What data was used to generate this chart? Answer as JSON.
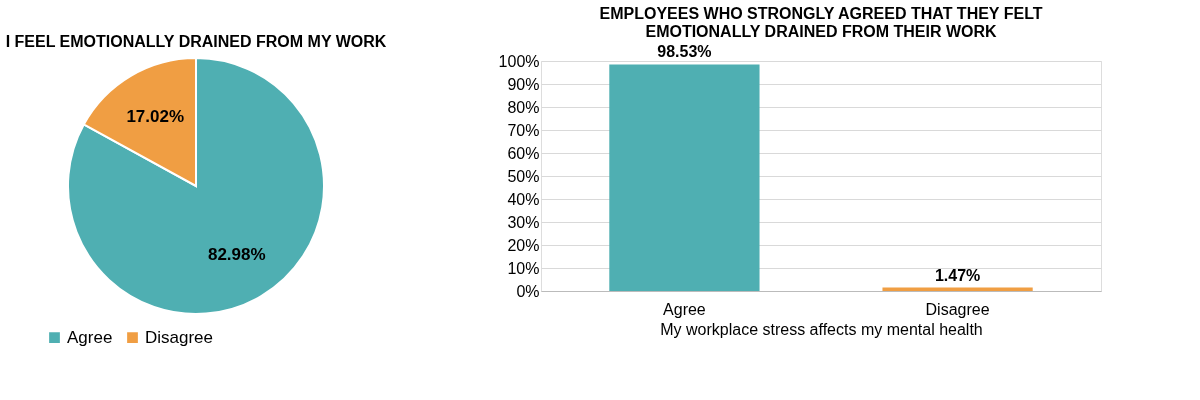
{
  "chart_data": [
    {
      "type": "pie",
      "title": "I FEEL EMOTIONALLY DRAINED FROM MY WORK",
      "categories": [
        "Agree",
        "Disagree"
      ],
      "values": [
        82.98,
        17.02
      ],
      "colors": [
        "#4fafb2",
        "#f09e43"
      ],
      "value_labels": [
        "82.98%",
        "17.02%"
      ],
      "legend": "bottom"
    },
    {
      "type": "bar",
      "title": "EMPLOYEES WHO STRONGLY AGREED THAT THEY FELT EMOTIONALLY DRAINED FROM THEIR WORK",
      "xlabel": "My workplace stress affects my mental health",
      "categories": [
        "Agree",
        "Disagree"
      ],
      "values": [
        98.53,
        1.47
      ],
      "colors": [
        "#4fafb2",
        "#f09e43"
      ],
      "value_labels": [
        "98.53%",
        "1.47%"
      ],
      "ylim": [
        0,
        100
      ],
      "yticks": [
        {
          "value": 0,
          "label": "0%"
        },
        {
          "value": 10,
          "label": "10%"
        },
        {
          "value": 20,
          "label": "20%"
        },
        {
          "value": 30,
          "label": "30%"
        },
        {
          "value": 40,
          "label": "40%"
        },
        {
          "value": 50,
          "label": "50%"
        },
        {
          "value": 60,
          "label": "60%"
        },
        {
          "value": 70,
          "label": "70%"
        },
        {
          "value": 80,
          "label": "80%"
        },
        {
          "value": 90,
          "label": "90%"
        },
        {
          "value": 100,
          "label": "100%"
        }
      ],
      "grid": "y"
    }
  ]
}
